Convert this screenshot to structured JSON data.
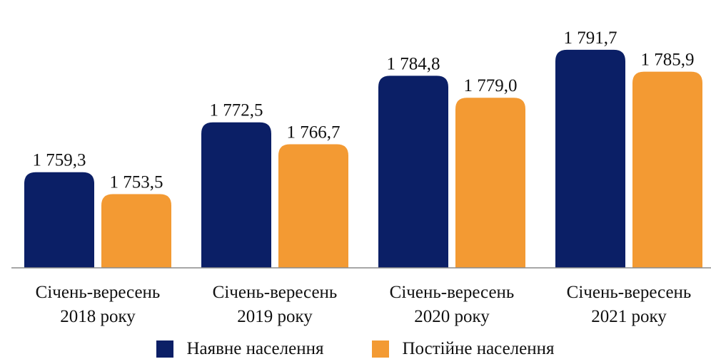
{
  "chart_data": {
    "type": "bar",
    "categories": [
      [
        "Січень-вересень",
        "2018 року"
      ],
      [
        "Січень-вересень",
        "2019 року"
      ],
      [
        "Січень-вересень",
        "2020 року"
      ],
      [
        "Січень-вересень",
        "2021 року"
      ]
    ],
    "series": [
      {
        "name": "Наявне населення",
        "color": "#0b1f66",
        "values": [
          1759.3,
          1772.5,
          1784.8,
          1791.7
        ],
        "labels": [
          "1 759,3",
          "1 772,5",
          "1 784,8",
          "1 791,7"
        ]
      },
      {
        "name": "Постійне населення",
        "color": "#f39a33",
        "values": [
          1753.5,
          1766.7,
          1779.0,
          1785.9
        ],
        "labels": [
          "1 753,5",
          "1 766,7",
          "1 779,0",
          "1 785,9"
        ]
      }
    ],
    "ylim": [
      1734,
      1796
    ],
    "grid": false,
    "legend_position": "bottom-center",
    "title": "",
    "xlabel": "",
    "ylabel": ""
  }
}
